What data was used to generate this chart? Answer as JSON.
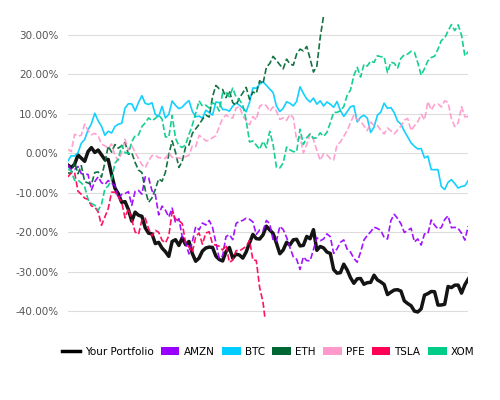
{
  "title": "",
  "ylim": [
    -0.42,
    0.35
  ],
  "yticks": [
    -0.4,
    -0.3,
    -0.2,
    -0.1,
    0.0,
    0.1,
    0.2,
    0.3
  ],
  "ytick_labels": [
    "-40.00%",
    "-30.00%",
    "-20.00%",
    "-10.00%",
    "0.00%",
    "10.00%",
    "20.00%",
    "30.00%"
  ],
  "n_points": 120,
  "series": {
    "Your Portfolio": {
      "color": "#000000",
      "lw": 2.5,
      "ls": "solid",
      "seed": 42
    },
    "AMZN": {
      "color": "#9900ff",
      "lw": 1.2,
      "ls": "dashed",
      "seed": 7
    },
    "BTC": {
      "color": "#00ccff",
      "lw": 1.2,
      "ls": "solid",
      "seed": 13
    },
    "ETH": {
      "color": "#006633",
      "lw": 1.2,
      "ls": "dashed",
      "seed": 21
    },
    "PFE": {
      "color": "#ff99cc",
      "lw": 1.2,
      "ls": "dashed",
      "seed": 5
    },
    "TSLA": {
      "color": "#ff0055",
      "lw": 1.2,
      "ls": "dashed",
      "seed": 3
    },
    "XOM": {
      "color": "#00cc88",
      "lw": 1.2,
      "ls": "dashed",
      "seed": 9
    }
  },
  "background_color": "#ffffff",
  "grid_color": "#dddddd",
  "legend_fontsize": 7.5
}
